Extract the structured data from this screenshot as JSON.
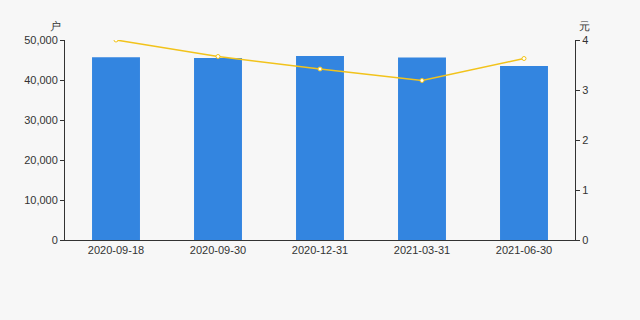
{
  "chart_data": {
    "type": "bar",
    "categories": [
      "2020-09-18",
      "2020-09-30",
      "2020-12-31",
      "2021-03-31",
      "2021-06-30"
    ],
    "series": [
      {
        "type": "bar",
        "color": "#3385e0",
        "values": [
          45700,
          45500,
          46000,
          45600,
          43500
        ]
      },
      {
        "type": "line",
        "axis": "y2",
        "color": "#f2c31b",
        "marker": "circle",
        "values": [
          4.0,
          3.67,
          3.42,
          3.19,
          3.63
        ]
      }
    ],
    "ylabel": "户",
    "y2label": "元",
    "ylim": [
      0,
      50000
    ],
    "yticks": [
      0,
      {
        "value": 10000,
        "label": "10,000"
      },
      {
        "value": 20000,
        "label": "20,000"
      },
      {
        "value": 30000,
        "label": "30,000"
      },
      {
        "value": 40000,
        "label": "40,000"
      },
      {
        "value": 50000,
        "label": "50,000"
      }
    ],
    "y2lim": [
      0,
      4
    ],
    "y2ticks": [
      0,
      1,
      2,
      3,
      4
    ],
    "grid": false
  }
}
